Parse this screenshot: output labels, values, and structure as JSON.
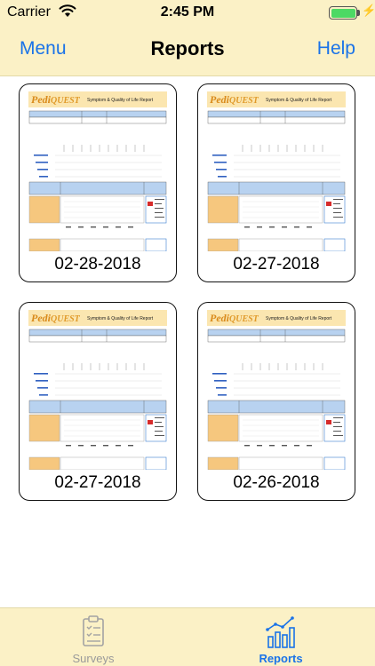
{
  "status_bar": {
    "carrier": "Carrier",
    "time": "2:45 PM"
  },
  "nav": {
    "left_button": "Menu",
    "title": "Reports",
    "right_button": "Help"
  },
  "colors": {
    "accent": "#1a73e8",
    "bar_background": "#fbf1c6"
  },
  "report_thumbnail": {
    "brand_prefix": "Pedi",
    "brand_suffix": "QUEST",
    "report_title": "Symptom & Quality of Life Report"
  },
  "reports": [
    {
      "date": "02-28-2018"
    },
    {
      "date": "02-27-2018"
    },
    {
      "date": "02-27-2018"
    },
    {
      "date": "02-26-2018"
    }
  ],
  "tabs": [
    {
      "label": "Surveys",
      "icon": "clipboard-check-icon",
      "selected": false
    },
    {
      "label": "Reports",
      "icon": "bar-chart-trend-icon",
      "selected": true
    }
  ]
}
